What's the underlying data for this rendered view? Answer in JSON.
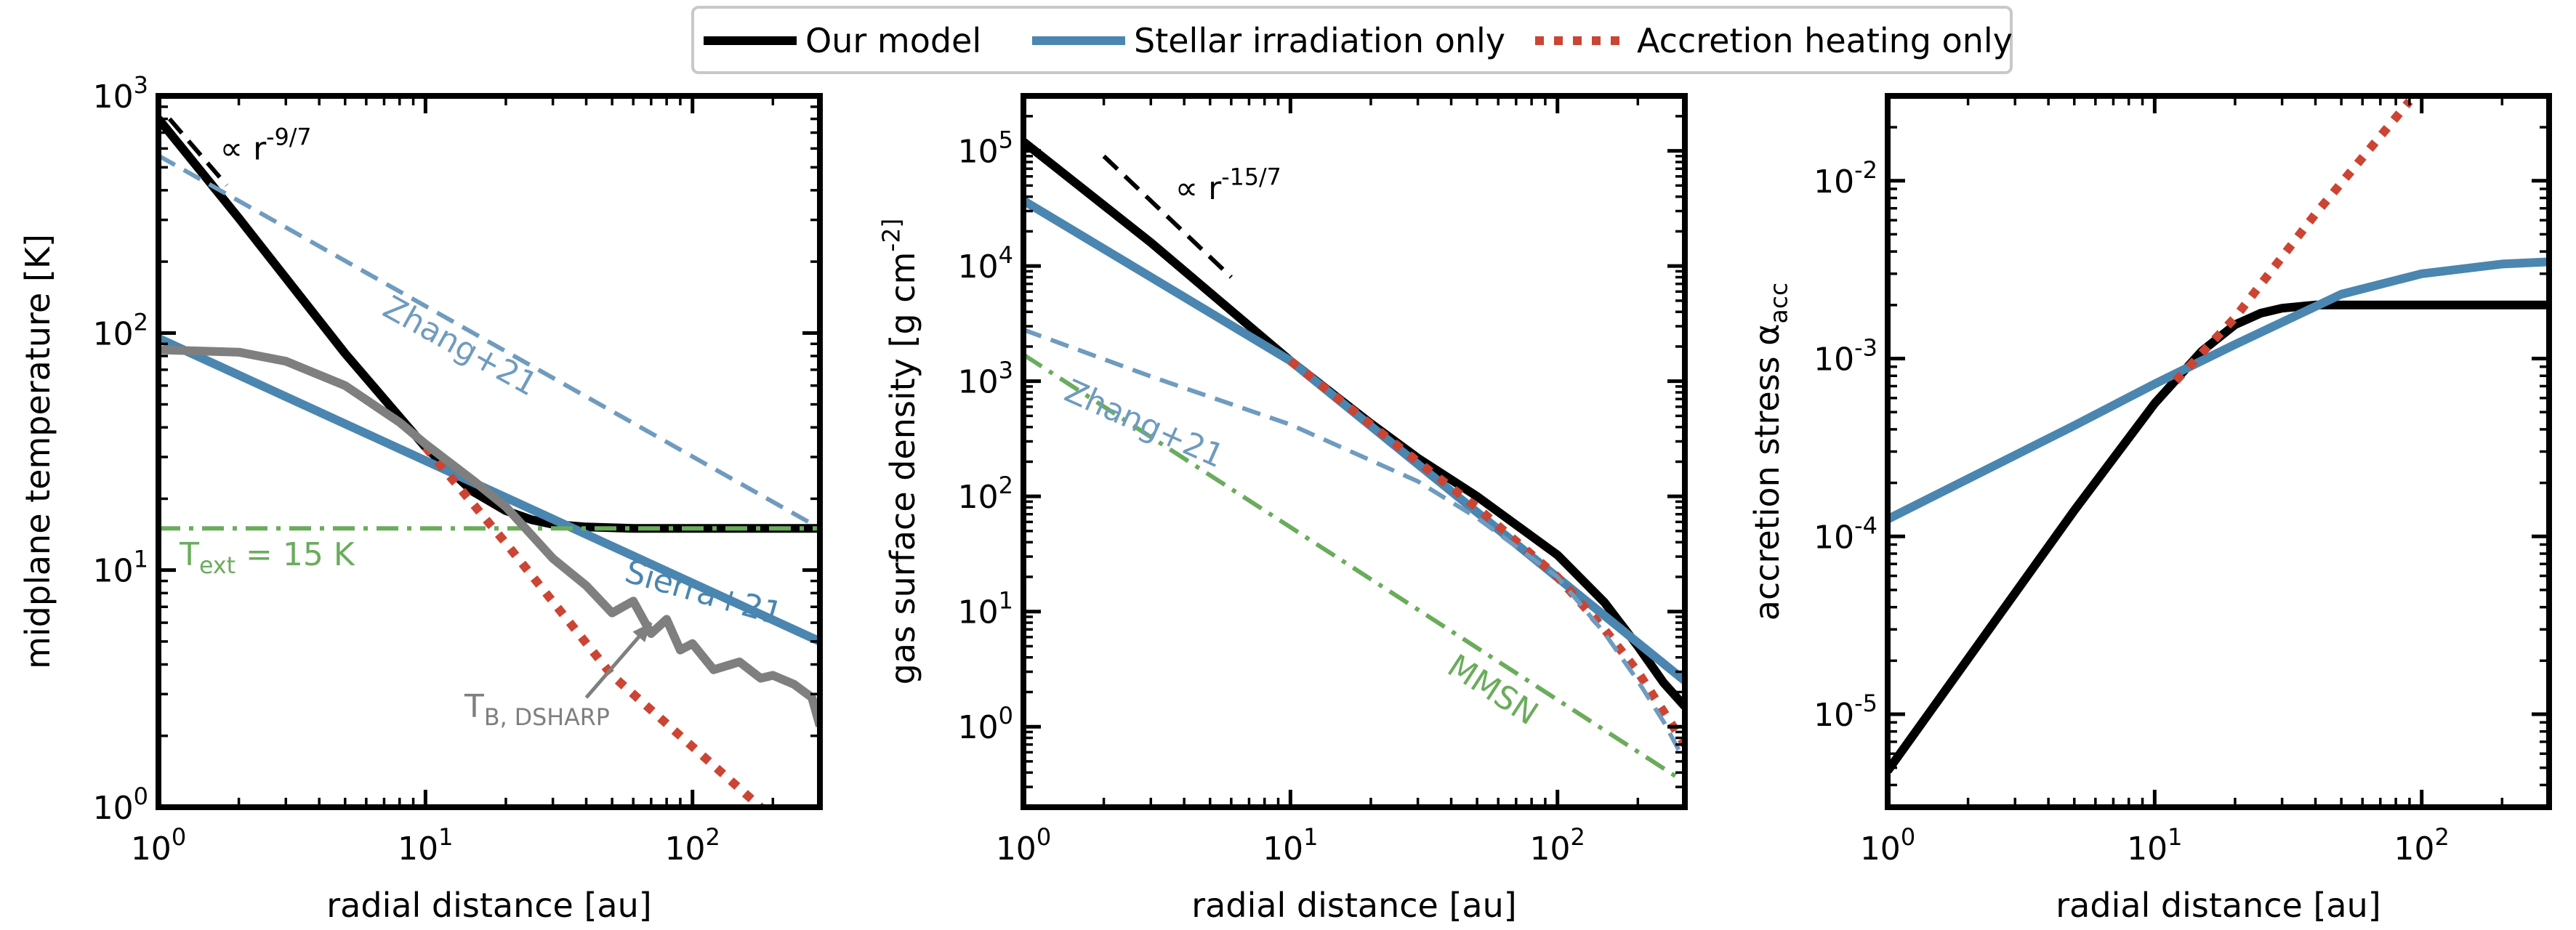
{
  "legend": {
    "entries": [
      {
        "label": "Our model",
        "color": "#000000",
        "style": "solid"
      },
      {
        "label": "Stellar irradiation only",
        "color": "#4a86b0",
        "style": "solid"
      },
      {
        "label": "Accretion heating only",
        "color": "#cc4433",
        "style": "dotted"
      }
    ]
  },
  "colors": {
    "model": "#000000",
    "irradiation": "#4a86b0",
    "accretion": "#cc4433",
    "green": "#6aac5c",
    "zhang_dashed": "#6f9bbf",
    "dsharp": "#7f7f7f"
  },
  "chart_data": [
    {
      "type": "line",
      "xscale": "log",
      "yscale": "log",
      "xlim": [
        1,
        300
      ],
      "ylim": [
        1,
        1000
      ],
      "xlabel": "radial distance [au]",
      "ylabel": "midplane temperature [K]",
      "xticks": [
        {
          "v": 1,
          "label": "10^0"
        },
        {
          "v": 10,
          "label": "10^1"
        },
        {
          "v": 100,
          "label": "10^2"
        }
      ],
      "yticks": [
        {
          "v": 1,
          "label": "10^0"
        },
        {
          "v": 10,
          "label": "10^1"
        },
        {
          "v": 100,
          "label": "10^2"
        },
        {
          "v": 1000,
          "label": "10^3"
        }
      ],
      "series": [
        {
          "name": "Our model",
          "color": "#000000",
          "style": "solid",
          "width": 12,
          "x": [
            1,
            2,
            5,
            10,
            15,
            20,
            25,
            30,
            40,
            60,
            100,
            200,
            300
          ],
          "y": [
            800,
            305,
            82,
            33,
            21.5,
            17.8,
            16.3,
            15.6,
            15.2,
            15.0,
            15.0,
            15.0,
            15.0
          ]
        },
        {
          "name": "Stellar irradiation only",
          "color": "#4a86b0",
          "style": "solid",
          "width": 12,
          "x": [
            1,
            300
          ],
          "y": [
            95,
            5
          ]
        },
        {
          "name": "Accretion heating only",
          "color": "#cc4433",
          "style": "dotted",
          "width": 12,
          "x": [
            10,
            20,
            50,
            100,
            200
          ],
          "y": [
            33,
            13,
            3.6,
            1.8,
            0.9
          ]
        },
        {
          "name": "",
          "color": "#6f9bbf",
          "style": "dashed",
          "width": 6,
          "x": [
            1,
            300
          ],
          "y": [
            560,
            15
          ]
        },
        {
          "name": "",
          "color": "#6aac5c",
          "style": "dashdot",
          "width": 6,
          "x": [
            1,
            300
          ],
          "y": [
            15,
            15
          ]
        },
        {
          "name": "",
          "color": "#7f7f7f",
          "style": "solid",
          "width": 12,
          "x": [
            1,
            2,
            3,
            5,
            8,
            10,
            15,
            20,
            30,
            40,
            50,
            60,
            70,
            80,
            90,
            100,
            120,
            150,
            180,
            200,
            240,
            280,
            300
          ],
          "y": [
            85,
            83,
            76,
            60,
            42,
            34,
            24,
            18.5,
            11.2,
            8.6,
            6.6,
            7.4,
            5.4,
            6.2,
            4.6,
            4.9,
            3.8,
            4.1,
            3.5,
            3.6,
            3.3,
            2.9,
            2.2
          ]
        },
        {
          "name": "",
          "color": "#000000",
          "style": "dashed",
          "width": 6,
          "x": [
            1.1,
            1.8
          ],
          "y": [
            800,
            420
          ]
        }
      ],
      "annotations": [
        {
          "text": "Zhang+21",
          "color": "#6f9bbf",
          "x": 6.8,
          "y": 120,
          "rotate": 29
        },
        {
          "text": "Sierra+21",
          "color": "#4a86b0",
          "x": 55,
          "y": 9,
          "rotate": 16
        },
        {
          "text": "T_ext = 15 K",
          "color": "#6aac5c",
          "x": 1.2,
          "y": 10.5,
          "rotate": 0
        },
        {
          "text": "T_B, DSHARP",
          "color": "#7f7f7f",
          "x": 14,
          "y": 2.4,
          "rotate": 0
        },
        {
          "text": "∝ r^-9/7",
          "color": "#000000",
          "x": 1.7,
          "y": 540,
          "rotate": 0
        }
      ],
      "arrow": {
        "from": [
          40,
          2.9
        ],
        "to": [
          70,
          6.0
        ],
        "color": "#7f7f7f"
      }
    },
    {
      "type": "line",
      "xscale": "log",
      "yscale": "log",
      "xlim": [
        1,
        300
      ],
      "ylim": [
        0.2,
        300000
      ],
      "xlabel": "radial distance [au]",
      "ylabel": "gas surface density [g cm^-2]",
      "xticks": [
        {
          "v": 1,
          "label": "10^0"
        },
        {
          "v": 10,
          "label": "10^1"
        },
        {
          "v": 100,
          "label": "10^2"
        }
      ],
      "yticks": [
        {
          "v": 1,
          "label": "10^0"
        },
        {
          "v": 10,
          "label": "10^1"
        },
        {
          "v": 100,
          "label": "10^2"
        },
        {
          "v": 1000,
          "label": "10^3"
        },
        {
          "v": 10000,
          "label": "10^4"
        },
        {
          "v": 100000,
          "label": "10^5"
        }
      ],
      "series": [
        {
          "name": "Our model",
          "color": "#000000",
          "style": "solid",
          "width": 12,
          "x": [
            1,
            3,
            10,
            20,
            30,
            50,
            100,
            150,
            200,
            250,
            300
          ],
          "y": [
            120000,
            16000,
            1500,
            430,
            215,
            100,
            31,
            12,
            5,
            2.4,
            1.5
          ]
        },
        {
          "name": "Stellar irradiation only",
          "color": "#4a86b0",
          "style": "solid",
          "width": 12,
          "x": [
            1,
            10,
            300
          ],
          "y": [
            37000,
            1500,
            2.5
          ]
        },
        {
          "name": "Accretion heating only",
          "color": "#cc4433",
          "style": "dotted",
          "width": 12,
          "x": [
            10,
            20,
            30,
            50,
            100,
            150,
            200,
            300
          ],
          "y": [
            1500,
            420,
            200,
            80,
            20,
            7,
            3,
            0.7
          ]
        },
        {
          "name": "",
          "color": "#6f9bbf",
          "style": "dashed",
          "width": 6,
          "x": [
            1,
            3,
            10,
            30,
            50,
            100,
            150,
            200,
            250,
            300
          ],
          "y": [
            2800,
            1100,
            420,
            135,
            65,
            20,
            6.5,
            2.5,
            1.1,
            0.5
          ]
        },
        {
          "name": "",
          "color": "#6aac5c",
          "style": "dashdot",
          "width": 6,
          "x": [
            1,
            300
          ],
          "y": [
            1700,
            0.33
          ]
        },
        {
          "name": "",
          "color": "#000000",
          "style": "dashed",
          "width": 6,
          "x": [
            2,
            6
          ],
          "y": [
            90000,
            8000
          ]
        }
      ],
      "annotations": [
        {
          "text": "Zhang+21",
          "color": "#6f9bbf",
          "x": 1.4,
          "y": 700,
          "rotate": 24
        },
        {
          "text": "MMSN",
          "color": "#6aac5c",
          "x": 38,
          "y": 3,
          "rotate": 33
        },
        {
          "text": "∝ r^-15/7",
          "color": "#000000",
          "x": 3.7,
          "y": 38000,
          "rotate": 0
        }
      ]
    },
    {
      "type": "line",
      "xscale": "log",
      "yscale": "log",
      "xlim": [
        1,
        300
      ],
      "ylim": [
        3e-06,
        0.03
      ],
      "xlabel": "radial distance [au]",
      "ylabel": "accretion stress α_acc",
      "xticks": [
        {
          "v": 1,
          "label": "10^0"
        },
        {
          "v": 10,
          "label": "10^1"
        },
        {
          "v": 100,
          "label": "10^2"
        }
      ],
      "yticks": [
        {
          "v": 1e-05,
          "label": "10^-5"
        },
        {
          "v": 0.0001,
          "label": "10^-4"
        },
        {
          "v": 0.001,
          "label": "10^-3"
        },
        {
          "v": 0.01,
          "label": "10^-2"
        }
      ],
      "series": [
        {
          "name": "Our model",
          "color": "#000000",
          "style": "solid",
          "width": 12,
          "x": [
            1,
            5,
            10,
            15,
            20,
            25,
            30,
            40,
            60,
            100,
            300
          ],
          "y": [
            4.8e-06,
            0.00014,
            0.00056,
            0.0011,
            0.00155,
            0.0018,
            0.00192,
            0.002,
            0.002,
            0.002,
            0.002
          ]
        },
        {
          "name": "Stellar irradiation only",
          "color": "#4a86b0",
          "style": "solid",
          "width": 12,
          "x": [
            1,
            5,
            10,
            20,
            30,
            50,
            100,
            200,
            300
          ],
          "y": [
            0.000125,
            0.00042,
            0.00072,
            0.0012,
            0.0016,
            0.0023,
            0.003,
            0.0034,
            0.0035
          ]
        },
        {
          "name": "Accretion heating only",
          "color": "#cc4433",
          "style": "dotted",
          "width": 12,
          "x": [
            12,
            20,
            40,
            90
          ],
          "y": [
            0.00075,
            0.0017,
            0.0065,
            0.028
          ]
        }
      ],
      "annotations": []
    }
  ]
}
